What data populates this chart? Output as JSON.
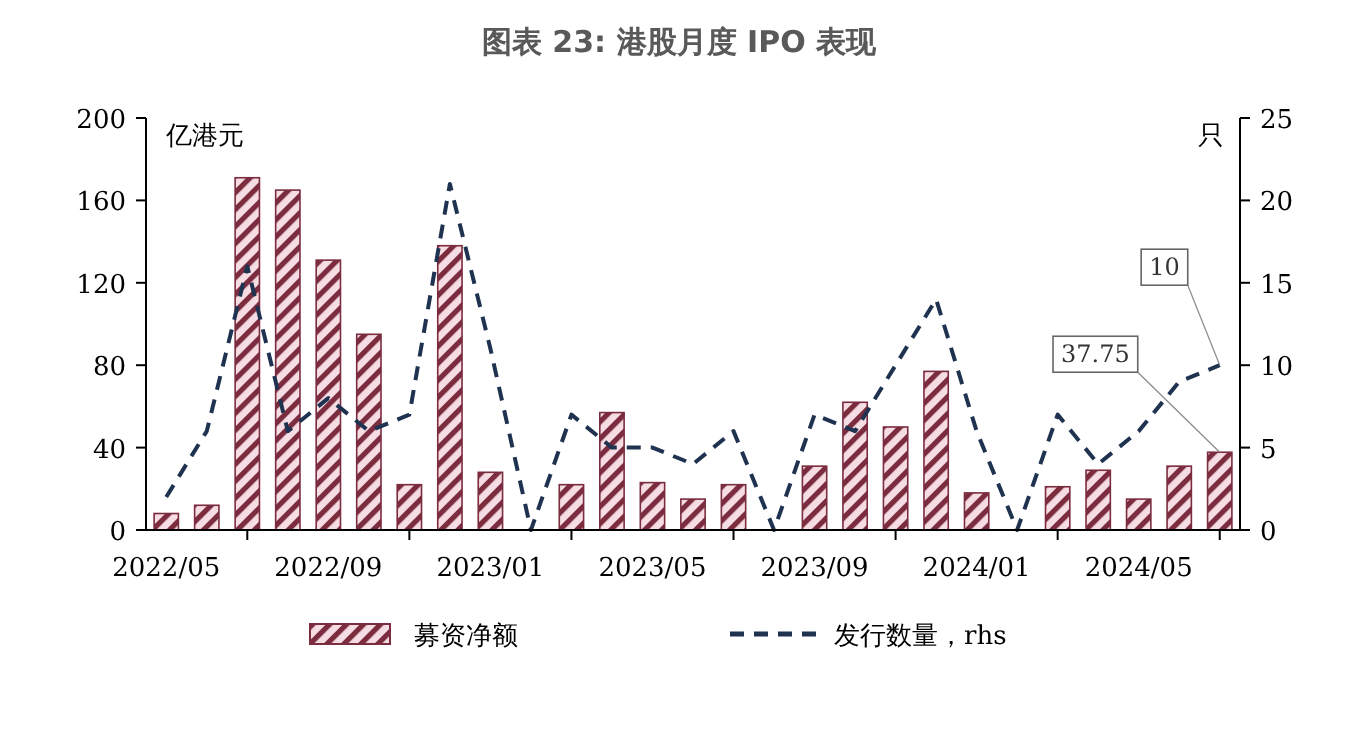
{
  "chart_data": {
    "type": "bar",
    "title": "图表 23: 港股月度 IPO 表现",
    "ylabel": "亿港元",
    "y2label": "只",
    "categories": [
      "2022/05",
      null,
      null,
      null,
      "2022/09",
      null,
      null,
      null,
      "2023/01",
      null,
      null,
      null,
      "2023/05",
      null,
      null,
      null,
      "2023/09",
      null,
      null,
      null,
      "2024/01",
      null,
      null,
      null,
      "2024/05",
      null,
      null
    ],
    "series": [
      {
        "name": "募资净额",
        "color": "#7b2c3f",
        "values": [
          8,
          12,
          171,
          165,
          131,
          95,
          22,
          138,
          28,
          0,
          22,
          57,
          23,
          15,
          22,
          0,
          31,
          62,
          50,
          77,
          18,
          0,
          21,
          29,
          15,
          31,
          37.75
        ],
        "value_labels": [
          null,
          null,
          null,
          null,
          null,
          null,
          null,
          null,
          null,
          null,
          null,
          null,
          null,
          null,
          null,
          null,
          null,
          null,
          null,
          null,
          null,
          null,
          null,
          null,
          null,
          null,
          "37.75"
        ]
      },
      {
        "name": "发行数量，rhs",
        "type": "line",
        "axis": "y2",
        "color": "#1f3350",
        "line_style": "dashed",
        "values": [
          2,
          6,
          16,
          6,
          8,
          6,
          7,
          21,
          11,
          0,
          7,
          5,
          5,
          4,
          6,
          0,
          7,
          6,
          10,
          14,
          6,
          0,
          7,
          4,
          6,
          9,
          10
        ],
        "value_labels": [
          null,
          null,
          null,
          null,
          null,
          null,
          null,
          null,
          null,
          null,
          null,
          null,
          null,
          null,
          null,
          null,
          null,
          null,
          null,
          null,
          null,
          null,
          null,
          null,
          null,
          null,
          "10"
        ]
      }
    ],
    "ylim": [
      0,
      200
    ],
    "yticks": [
      0,
      40,
      80,
      120,
      160,
      200
    ],
    "y2lim": [
      0,
      25
    ],
    "y2ticks": [
      0,
      5,
      10,
      15,
      20,
      25
    ],
    "legend": "bottom",
    "grid": false
  }
}
